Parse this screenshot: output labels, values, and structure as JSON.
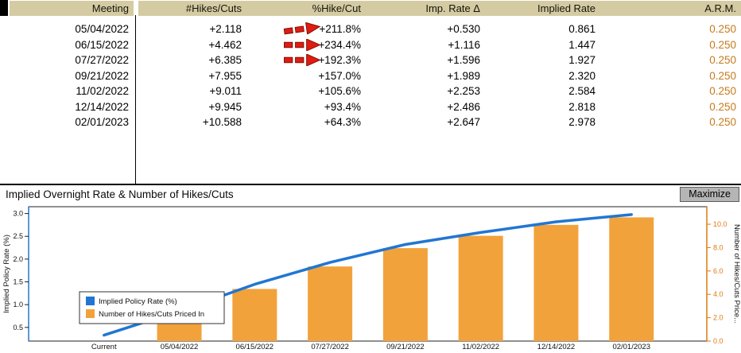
{
  "table": {
    "columns": [
      "Meeting",
      "#Hikes/Cuts",
      "%Hike/Cut",
      "Imp. Rate Δ",
      "Implied Rate",
      "A.R.M."
    ],
    "rows": [
      {
        "meeting": "05/04/2022",
        "hikes_cuts": "+2.118",
        "pct_hike_cut": "+211.8%",
        "imp_rate_delta": "+0.530",
        "implied_rate": "0.861",
        "arm": "0.250"
      },
      {
        "meeting": "06/15/2022",
        "hikes_cuts": "+4.462",
        "pct_hike_cut": "+234.4%",
        "imp_rate_delta": "+1.116",
        "implied_rate": "1.447",
        "arm": "0.250"
      },
      {
        "meeting": "07/27/2022",
        "hikes_cuts": "+6.385",
        "pct_hike_cut": "+192.3%",
        "imp_rate_delta": "+1.596",
        "implied_rate": "1.927",
        "arm": "0.250"
      },
      {
        "meeting": "09/21/2022",
        "hikes_cuts": "+7.955",
        "pct_hike_cut": "+157.0%",
        "imp_rate_delta": "+1.989",
        "implied_rate": "2.320",
        "arm": "0.250"
      },
      {
        "meeting": "11/02/2022",
        "hikes_cuts": "+9.011",
        "pct_hike_cut": "+105.6%",
        "imp_rate_delta": "+2.253",
        "implied_rate": "2.584",
        "arm": "0.250"
      },
      {
        "meeting": "12/14/2022",
        "hikes_cuts": "+9.945",
        "pct_hike_cut": "+93.4%",
        "imp_rate_delta": "+2.486",
        "implied_rate": "2.818",
        "arm": "0.250"
      },
      {
        "meeting": "02/01/2023",
        "hikes_cuts": "+10.588",
        "pct_hike_cut": "+64.3%",
        "imp_rate_delta": "+2.647",
        "implied_rate": "2.978",
        "arm": "0.250"
      }
    ],
    "header_bg": "#d5cba3",
    "arm_text_color": "#c77a1c",
    "arrow_color": "#e01b10"
  },
  "chart": {
    "title": "Implied Overnight Rate & Number of Hikes/Cuts",
    "maximize_label": "Maximize"
  },
  "chart_data": {
    "type": "bar",
    "title": "Implied Overnight Rate & Number of Hikes/Cuts",
    "categories": [
      "Current",
      "05/04/2022",
      "06/15/2022",
      "07/27/2022",
      "09/21/2022",
      "11/02/2022",
      "12/14/2022",
      "02/01/2023"
    ],
    "series": [
      {
        "name": "Implied Policy Rate (%)",
        "type": "line",
        "axis": "left",
        "color": "#2176d2",
        "values": [
          0.33,
          0.861,
          1.447,
          1.927,
          2.32,
          2.584,
          2.818,
          2.978
        ]
      },
      {
        "name": "Number of Hikes/Cuts Priced In",
        "type": "bar",
        "axis": "right",
        "color": "#f2a23b",
        "values": [
          0,
          2.118,
          4.462,
          6.385,
          7.955,
          9.011,
          9.945,
          10.588
        ]
      }
    ],
    "left_axis": {
      "label": "Implied Policy Rate (%)",
      "ticks": [
        0.5,
        1.0,
        1.5,
        2.0,
        2.5,
        3.0
      ],
      "range": [
        0.2,
        3.15
      ],
      "color": "#111111"
    },
    "right_axis": {
      "label": "Number of Hikes/Cuts Price...",
      "ticks": [
        0.0,
        2.0,
        4.0,
        6.0,
        8.0,
        10.0
      ],
      "range": [
        0,
        11.5
      ],
      "color": "#dd7a0f"
    },
    "legend": [
      "Implied Policy Rate (%)",
      "Number of Hikes/Cuts Priced In"
    ],
    "legend_position": "lower-left",
    "grid": false
  }
}
